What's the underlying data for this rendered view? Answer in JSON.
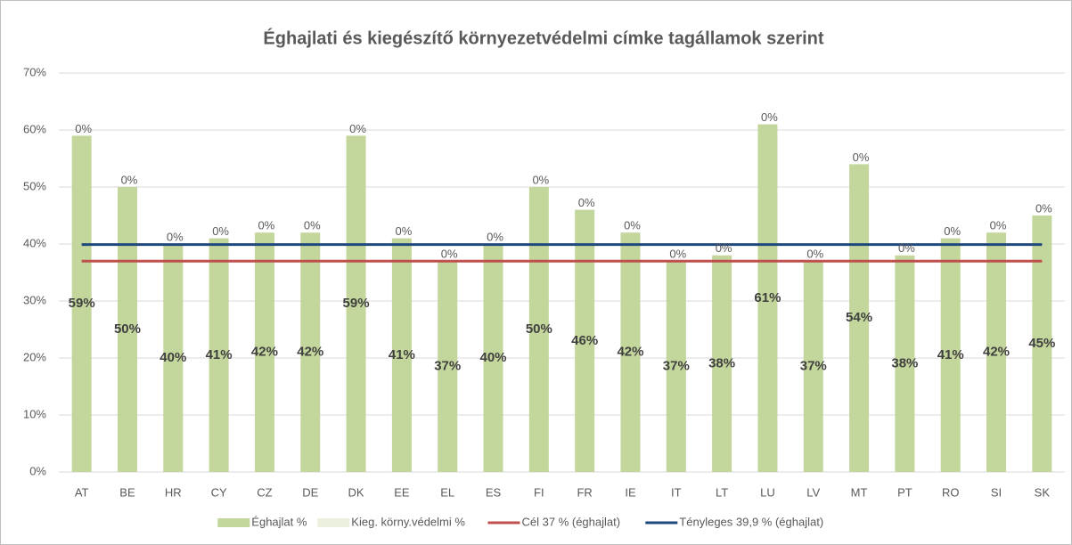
{
  "chart_data": {
    "type": "bar",
    "stacked": true,
    "title": "Éghajlati és kiegészítő környezetvédelmi címke tagállamok szerint",
    "categories": [
      "AT",
      "BE",
      "HR",
      "CY",
      "CZ",
      "DE",
      "DK",
      "EE",
      "EL",
      "ES",
      "FI",
      "FR",
      "IE",
      "IT",
      "LT",
      "LU",
      "LV",
      "MT",
      "PT",
      "RO",
      "SI",
      "SK"
    ],
    "series": [
      {
        "name": "Éghajlat %",
        "type": "bar",
        "color": "#c3d69b",
        "values": [
          59,
          50,
          40,
          41,
          42,
          42,
          59,
          41,
          37,
          40,
          50,
          46,
          42,
          37,
          38,
          61,
          37,
          54,
          38,
          41,
          42,
          45
        ],
        "value_labels": [
          "59%",
          "50%",
          "40%",
          "41%",
          "42%",
          "42%",
          "59%",
          "41%",
          "37%",
          "40%",
          "50%",
          "46%",
          "42%",
          "37%",
          "38%",
          "61%",
          "37%",
          "54%",
          "38%",
          "41%",
          "42%",
          "45%"
        ]
      },
      {
        "name": "Kieg. körny.védelmi %",
        "type": "bar",
        "color": "#ebf1de",
        "values": [
          0,
          0,
          0,
          0,
          0,
          0,
          0,
          0,
          0,
          0,
          0,
          0,
          0,
          0,
          0,
          0,
          0,
          0,
          0,
          0,
          0,
          0
        ],
        "value_labels": [
          "0%",
          "0%",
          "0%",
          "0%",
          "0%",
          "0%",
          "0%",
          "0%",
          "0%",
          "0%",
          "0%",
          "0%",
          "0%",
          "0%",
          "0%",
          "0%",
          "0%",
          "0%",
          "0%",
          "0%",
          "0%",
          "0%"
        ]
      },
      {
        "name": "Cél 37 % (éghajlat)",
        "type": "line",
        "color": "#c0504d",
        "values": [
          37,
          37,
          37,
          37,
          37,
          37,
          37,
          37,
          37,
          37,
          37,
          37,
          37,
          37,
          37,
          37,
          37,
          37,
          37,
          37,
          37,
          37
        ]
      },
      {
        "name": "Tényleges 39,9 % (éghajlat)",
        "type": "line",
        "color": "#1f497d",
        "values": [
          39.9,
          39.9,
          39.9,
          39.9,
          39.9,
          39.9,
          39.9,
          39.9,
          39.9,
          39.9,
          39.9,
          39.9,
          39.9,
          39.9,
          39.9,
          39.9,
          39.9,
          39.9,
          39.9,
          39.9,
          39.9,
          39.9
        ]
      }
    ],
    "ylim": [
      0,
      70
    ],
    "yticks": [
      {
        "value": 0,
        "label": "0%"
      },
      {
        "value": 10,
        "label": "10%"
      },
      {
        "value": 20,
        "label": "20%"
      },
      {
        "value": 30,
        "label": "30%"
      },
      {
        "value": 40,
        "label": "40%"
      },
      {
        "value": 50,
        "label": "50%"
      },
      {
        "value": 60,
        "label": "60%"
      },
      {
        "value": 70,
        "label": "70%"
      }
    ],
    "grid": true,
    "legend": "bottom"
  }
}
